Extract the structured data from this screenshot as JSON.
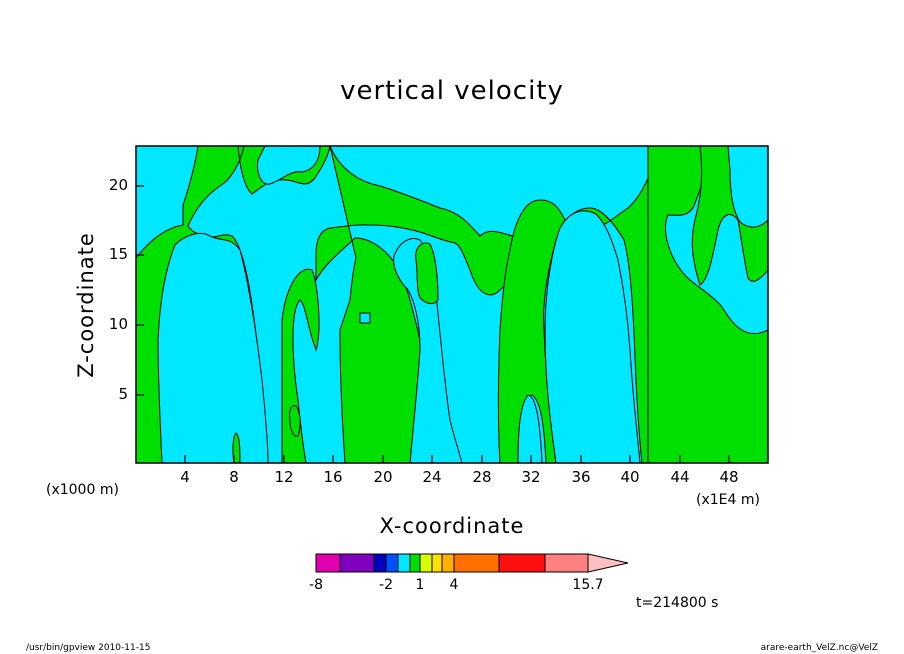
{
  "chart_data": {
    "type": "heatmap",
    "title": "vertical velocity",
    "xlabel": "X-coordinate",
    "ylabel": "Z-coordinate",
    "x_unit_left": "(x1000 m)",
    "x_unit_right": "(x1E4 m)",
    "xlim": [
      0,
      51
    ],
    "ylim": [
      0,
      23
    ],
    "x_ticks": [
      "4",
      "8",
      "12",
      "16",
      "20",
      "24",
      "28",
      "32",
      "36",
      "40",
      "44",
      "48"
    ],
    "y_ticks": [
      "5",
      "10",
      "15",
      "20"
    ],
    "colorbar": {
      "ticks": [
        "-8",
        "-2",
        "1",
        "4",
        "15.7"
      ],
      "colors": [
        "#e000b0",
        "#8000c0",
        "#0000c0",
        "#0050ff",
        "#00e8ff",
        "#00e000",
        "#d8ff00",
        "#ffe000",
        "#ffb000",
        "#ff7000",
        "#ff1010",
        "#ff8080",
        "#ffc0c0"
      ]
    },
    "fields": {
      "negative": "#00e8ff",
      "positive": "#00e000"
    },
    "time_label": "t=214800 s"
  },
  "footer_left": "/usr/bin/gpview   2010-11-15",
  "footer_right": "arare-earth_VelZ.nc@VelZ"
}
